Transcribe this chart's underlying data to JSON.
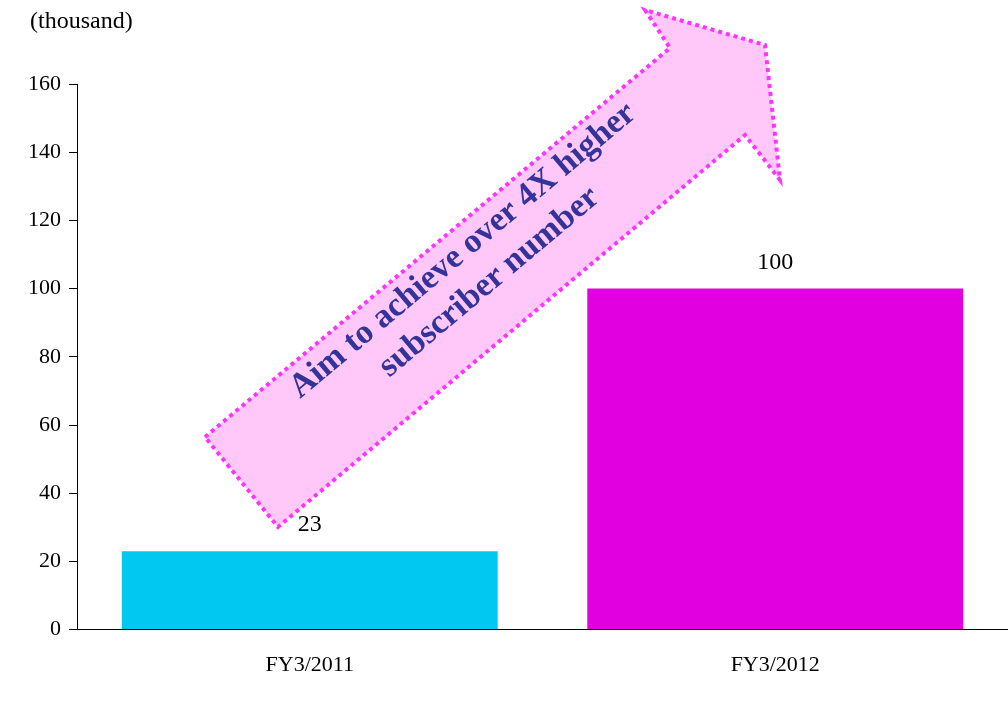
{
  "chart_data": {
    "type": "bar",
    "ylabel": "(thousand)",
    "categories": [
      "FY3/2011",
      "FY3/2012"
    ],
    "values": [
      23,
      100
    ],
    "colors": [
      "#00c8f0",
      "#e000e0"
    ],
    "ylim": [
      0,
      160
    ],
    "yticks": [
      0,
      20,
      40,
      60,
      80,
      100,
      120,
      140,
      160
    ],
    "grid": false,
    "legend": false,
    "data_labels": true,
    "annotations": [
      "Aim to achieve over 4X higher\nsubscriber number"
    ]
  }
}
